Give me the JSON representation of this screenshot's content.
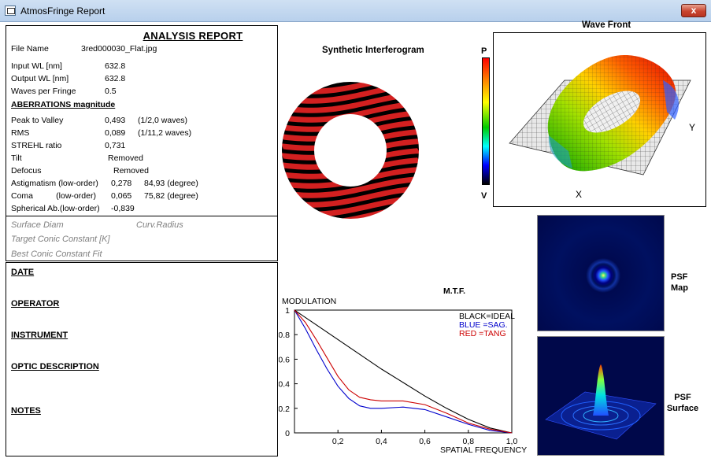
{
  "window": {
    "title": "AtmosFringe  Report",
    "close_symbol": "x"
  },
  "report": {
    "title": "ANALYSIS  REPORT",
    "file_name_label": "File Name",
    "file_name": "3red000030_Flat.jpg",
    "input_wl_label": "Input  WL [nm]",
    "input_wl": "632.8",
    "output_wl_label": "Output WL [nm]",
    "output_wl": "632.8",
    "waves_per_fringe_label": "Waves per Fringe",
    "waves_per_fringe": "0.5",
    "aberrations_header": "ABERRATIONS magnitude",
    "ptv_label": "Peak to Valley",
    "ptv_value": "0,493",
    "ptv_waves": "(1/2,0 waves)",
    "rms_label": "RMS",
    "rms_value": "0,089",
    "rms_waves": "(1/11,2 waves)",
    "strehl_label": "STREHL ratio",
    "strehl_value": "0,731",
    "tilt_label": "Tilt",
    "tilt_value": "Removed",
    "defocus_label": "Defocus",
    "defocus_value": "Removed",
    "astig_label": "Astigmatism  (low-order)",
    "astig_value": "0,278",
    "astig_deg": "84,93  (degree)",
    "coma_label": "Coma          (low-order)",
    "coma_value": "0,065",
    "coma_deg": "75,82  (degree)",
    "spherical_label": "Spherical Ab.(low-order)",
    "spherical_value": "-0,839",
    "surface_diam": "Surface Diam",
    "curv_radius": "Curv.Radius",
    "target_conic": "Target Conic Constant [K]",
    "best_conic": "Best Conic Constant Fit"
  },
  "notes": {
    "date": "DATE",
    "operator": "OPERATOR",
    "instrument": "INSTRUMENT",
    "optic_description": "OPTIC DESCRIPTION",
    "notes": "NOTES"
  },
  "interferogram": {
    "title": "Synthetic Interferogram",
    "fringe_color": "#d32020",
    "dark_color": "#000000"
  },
  "colorbar": {
    "top_label": "P",
    "bottom_label": "V"
  },
  "wavefront": {
    "title": "Wave Front",
    "x_label": "X",
    "y_label": "Y"
  },
  "psf": {
    "map_label": "PSF\nMap",
    "map_line1": "PSF",
    "map_line2": "Map",
    "surface_line1": "PSF",
    "surface_line2": "Surface"
  },
  "chart_data": {
    "type": "line",
    "title": "M.T.F.",
    "ylabel": "MODULATION",
    "xlabel": "SPATIAL FREQUENCY",
    "xlim": [
      0,
      1.0
    ],
    "ylim": [
      0,
      1
    ],
    "x_ticks": [
      "0,2",
      "0,4",
      "0,6",
      "0,8",
      "1,0"
    ],
    "y_ticks": [
      "0",
      "0.2",
      "0.4",
      "0.6",
      "0.8",
      "1"
    ],
    "legend": [
      {
        "text": "BLACK=IDEAL",
        "color": "#000000"
      },
      {
        "text": "BLUE  =SAG.",
        "color": "#0000cc"
      },
      {
        "text": "RED    =TANG",
        "color": "#cc0000"
      }
    ],
    "series": [
      {
        "color": "#000000",
        "x": [
          0,
          0.1,
          0.2,
          0.3,
          0.4,
          0.5,
          0.6,
          0.7,
          0.8,
          0.9,
          1.0
        ],
        "y": [
          1.0,
          0.88,
          0.76,
          0.64,
          0.52,
          0.41,
          0.3,
          0.2,
          0.11,
          0.04,
          0.0
        ]
      },
      {
        "color": "#0000cc",
        "x": [
          0,
          0.05,
          0.1,
          0.15,
          0.2,
          0.25,
          0.3,
          0.35,
          0.4,
          0.5,
          0.6,
          0.7,
          0.8,
          0.9,
          1.0
        ],
        "y": [
          1.0,
          0.85,
          0.68,
          0.52,
          0.38,
          0.28,
          0.22,
          0.2,
          0.2,
          0.21,
          0.19,
          0.13,
          0.07,
          0.02,
          0.0
        ]
      },
      {
        "color": "#cc0000",
        "x": [
          0,
          0.05,
          0.1,
          0.15,
          0.2,
          0.25,
          0.3,
          0.35,
          0.4,
          0.5,
          0.6,
          0.7,
          0.8,
          0.9,
          1.0
        ],
        "y": [
          1.0,
          0.9,
          0.76,
          0.61,
          0.46,
          0.35,
          0.29,
          0.27,
          0.26,
          0.26,
          0.23,
          0.16,
          0.08,
          0.03,
          0.0
        ]
      }
    ]
  }
}
